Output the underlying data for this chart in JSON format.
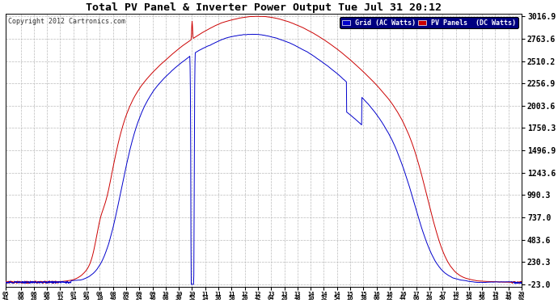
{
  "title": "Total PV Panel & Inverter Power Output Tue Jul 31 20:12",
  "copyright": "Copyright 2012 Cartronics.com",
  "legend_blue": "Grid (AC Watts)",
  "legend_red": "PV Panels  (DC Watts)",
  "blue_color": "#0000cc",
  "red_color": "#cc0000",
  "background_color": "#ffffff",
  "grid_color": "#bbbbbb",
  "yticks": [
    3016.9,
    2763.6,
    2510.2,
    2256.9,
    2003.6,
    1750.3,
    1496.9,
    1243.6,
    990.3,
    737.0,
    483.6,
    230.3,
    -23.0
  ],
  "ymin": -23.0,
  "ymax": 3016.9,
  "xtick_labels": [
    "05\n41",
    "06\n06",
    "06\n28",
    "06\n50",
    "07\n12",
    "07\n34",
    "07\n56",
    "08\n18",
    "08\n40",
    "09\n02",
    "09\n24",
    "09\n46",
    "10\n08",
    "10\n30",
    "10\n52",
    "11\n14",
    "11\n36",
    "11\n58",
    "12\n20",
    "12\n42",
    "13\n04",
    "13\n26",
    "13\n48",
    "14\n10",
    "14\n32",
    "14\n54",
    "15\n16",
    "15\n38",
    "16\n00",
    "16\n22",
    "16\n44",
    "17\n06",
    "17\n28",
    "17\n50",
    "18\n12",
    "18\n34",
    "18\n56",
    "19\n18",
    "19\n40",
    "20\n02"
  ],
  "xtick_minutes": [
    341,
    366,
    388,
    410,
    432,
    454,
    476,
    498,
    520,
    542,
    564,
    586,
    608,
    630,
    652,
    674,
    696,
    718,
    740,
    762,
    784,
    806,
    828,
    850,
    872,
    894,
    916,
    938,
    960,
    982,
    1004,
    1026,
    1048,
    1070,
    1092,
    1114,
    1136,
    1158,
    1180,
    1202
  ]
}
